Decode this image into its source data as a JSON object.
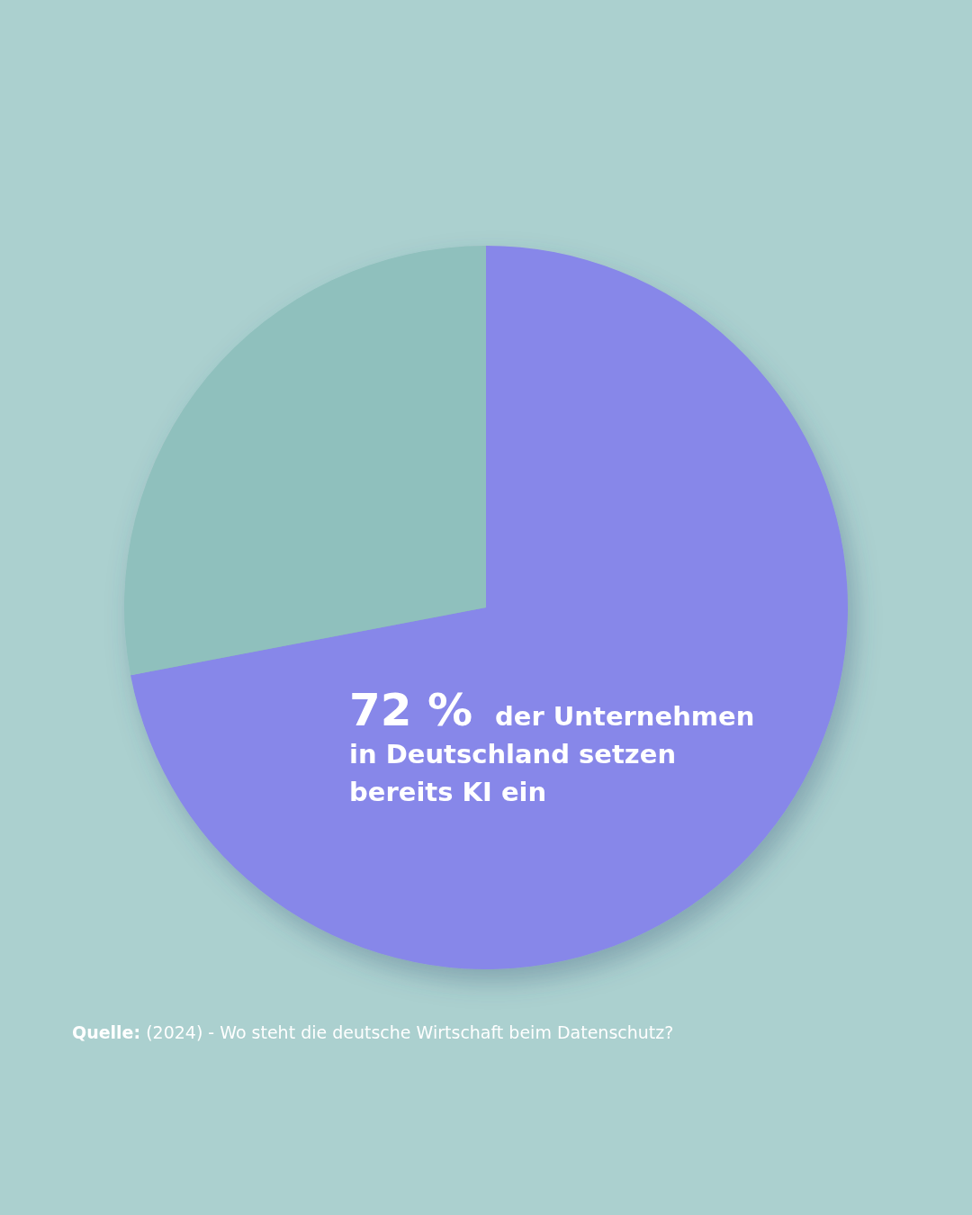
{
  "chart_data": {
    "type": "pie",
    "categories": [
      null,
      null
    ],
    "values": [
      72,
      28
    ],
    "colors": [
      "#8787e9",
      "#8fc0bd"
    ],
    "value_labels": [
      "72 %",
      null
    ],
    "annotations": [
      "der Unternehmen in Deutschland setzen bereits KI ein",
      "Quelle: (2024) - Wo steht die deutsche Wirtschaft beim Datenschutz?"
    ]
  }
}
